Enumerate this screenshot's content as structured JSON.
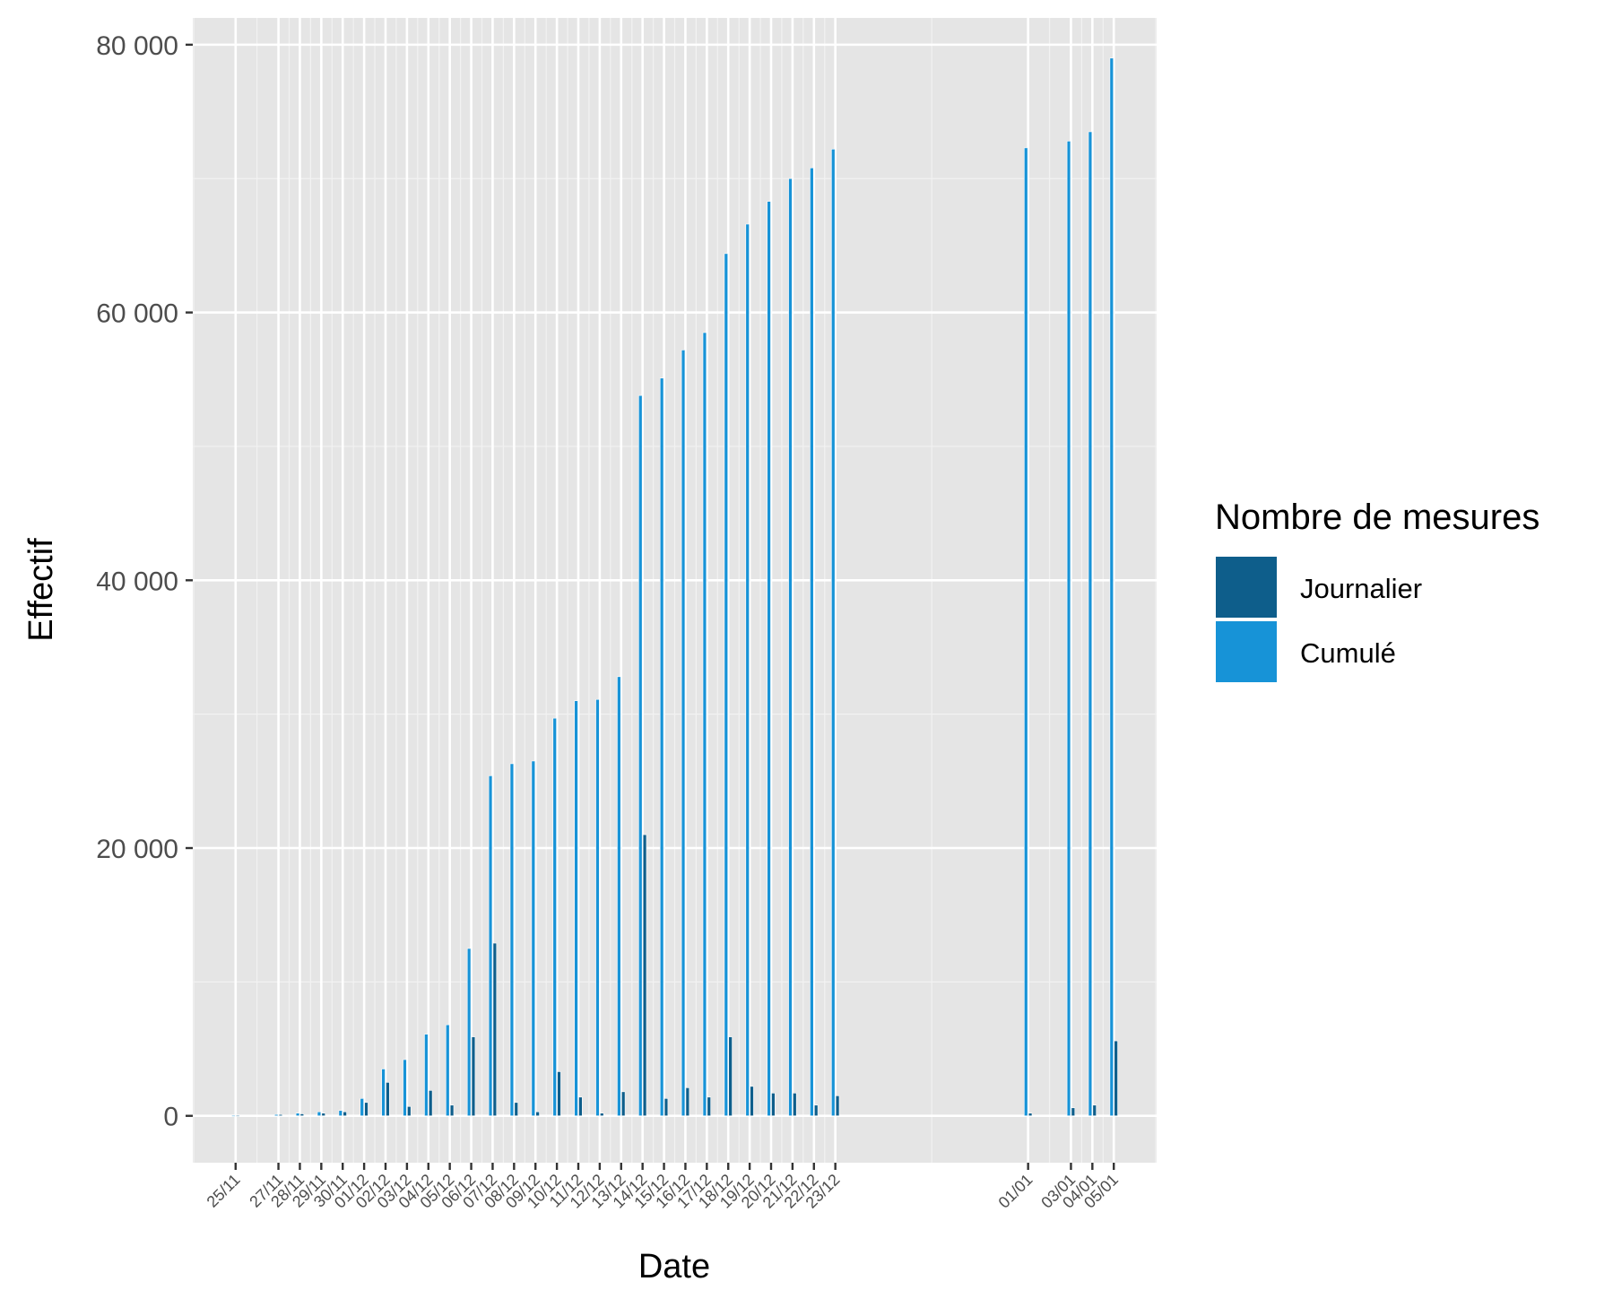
{
  "chart_data": {
    "type": "bar",
    "title": "",
    "xlabel": "Date",
    "ylabel": "Effectif",
    "ylim": [
      -3500,
      82000
    ],
    "yticks": [
      0,
      20000,
      40000,
      60000,
      80000
    ],
    "ytick_labels": [
      "0",
      "20 000",
      "40 000",
      "60 000",
      "80 000"
    ],
    "grid": true,
    "legend": {
      "title": "Nombre de mesures",
      "position": "right"
    },
    "x_range": [
      "2020-11-23",
      "2021-01-07"
    ],
    "categories": [
      "2020-11-25",
      "2020-11-27",
      "2020-11-28",
      "2020-11-29",
      "2020-11-30",
      "2020-12-01",
      "2020-12-02",
      "2020-12-03",
      "2020-12-04",
      "2020-12-05",
      "2020-12-06",
      "2020-12-07",
      "2020-12-08",
      "2020-12-09",
      "2020-12-10",
      "2020-12-11",
      "2020-12-12",
      "2020-12-13",
      "2020-12-14",
      "2020-12-15",
      "2020-12-16",
      "2020-12-17",
      "2020-12-18",
      "2020-12-19",
      "2020-12-20",
      "2020-12-21",
      "2020-12-22",
      "2020-12-23",
      "2021-01-01",
      "2021-01-03",
      "2021-01-04",
      "2021-01-05"
    ],
    "tick_labels": [
      "25/11",
      "27/11",
      "28/11",
      "29/11",
      "30/11",
      "01/12",
      "02/12",
      "03/12",
      "04/12",
      "05/12",
      "06/12",
      "07/12",
      "08/12",
      "09/12",
      "10/12",
      "11/12",
      "12/12",
      "13/12",
      "14/12",
      "15/12",
      "16/12",
      "17/12",
      "18/12",
      "19/12",
      "20/12",
      "21/12",
      "22/12",
      "23/12",
      "01/01",
      "03/01",
      "04/01",
      "05/01"
    ],
    "series": [
      {
        "name": "Journalier",
        "color": "#0e5e8b",
        "values": [
          20,
          100,
          150,
          200,
          300,
          1000,
          2500,
          700,
          1900,
          800,
          5900,
          12900,
          1000,
          300,
          3300,
          1400,
          200,
          1800,
          21000,
          1300,
          2100,
          1400,
          5900,
          2200,
          1700,
          1700,
          800,
          1500,
          200,
          600,
          800,
          5600
        ]
      },
      {
        "name": "Cumulé",
        "color": "#1793d7",
        "values": [
          20,
          100,
          200,
          300,
          400,
          1300,
          3500,
          4200,
          6100,
          6800,
          12500,
          25400,
          26300,
          26500,
          29700,
          31000,
          31100,
          32800,
          53800,
          55100,
          57200,
          58500,
          64400,
          66600,
          68300,
          70000,
          70800,
          72200,
          72300,
          72800,
          73500,
          79000
        ]
      }
    ]
  }
}
